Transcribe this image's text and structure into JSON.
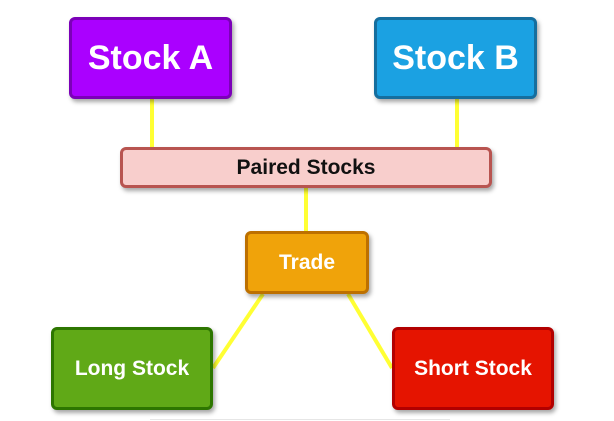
{
  "diagram": {
    "nodes": {
      "stock_a": "Stock A",
      "stock_b": "Stock B",
      "paired": "Paired Stocks",
      "trade": "Trade",
      "long": "Long Stock",
      "short": "Short Stock"
    },
    "edges": [
      {
        "from": "Stock A",
        "to": "Paired Stocks"
      },
      {
        "from": "Stock B",
        "to": "Paired Stocks"
      },
      {
        "from": "Paired Stocks",
        "to": "Trade"
      },
      {
        "from": "Trade",
        "to": "Long Stock"
      },
      {
        "from": "Trade",
        "to": "Short Stock"
      }
    ],
    "colors": {
      "stock_a_fill": "#aa00ff",
      "stock_b_fill": "#1ba1e2",
      "paired_fill": "#f8cecc",
      "trade_fill": "#f0a30a",
      "long_fill": "#60a917",
      "short_fill": "#e51400",
      "connector": "#ffff33"
    }
  }
}
